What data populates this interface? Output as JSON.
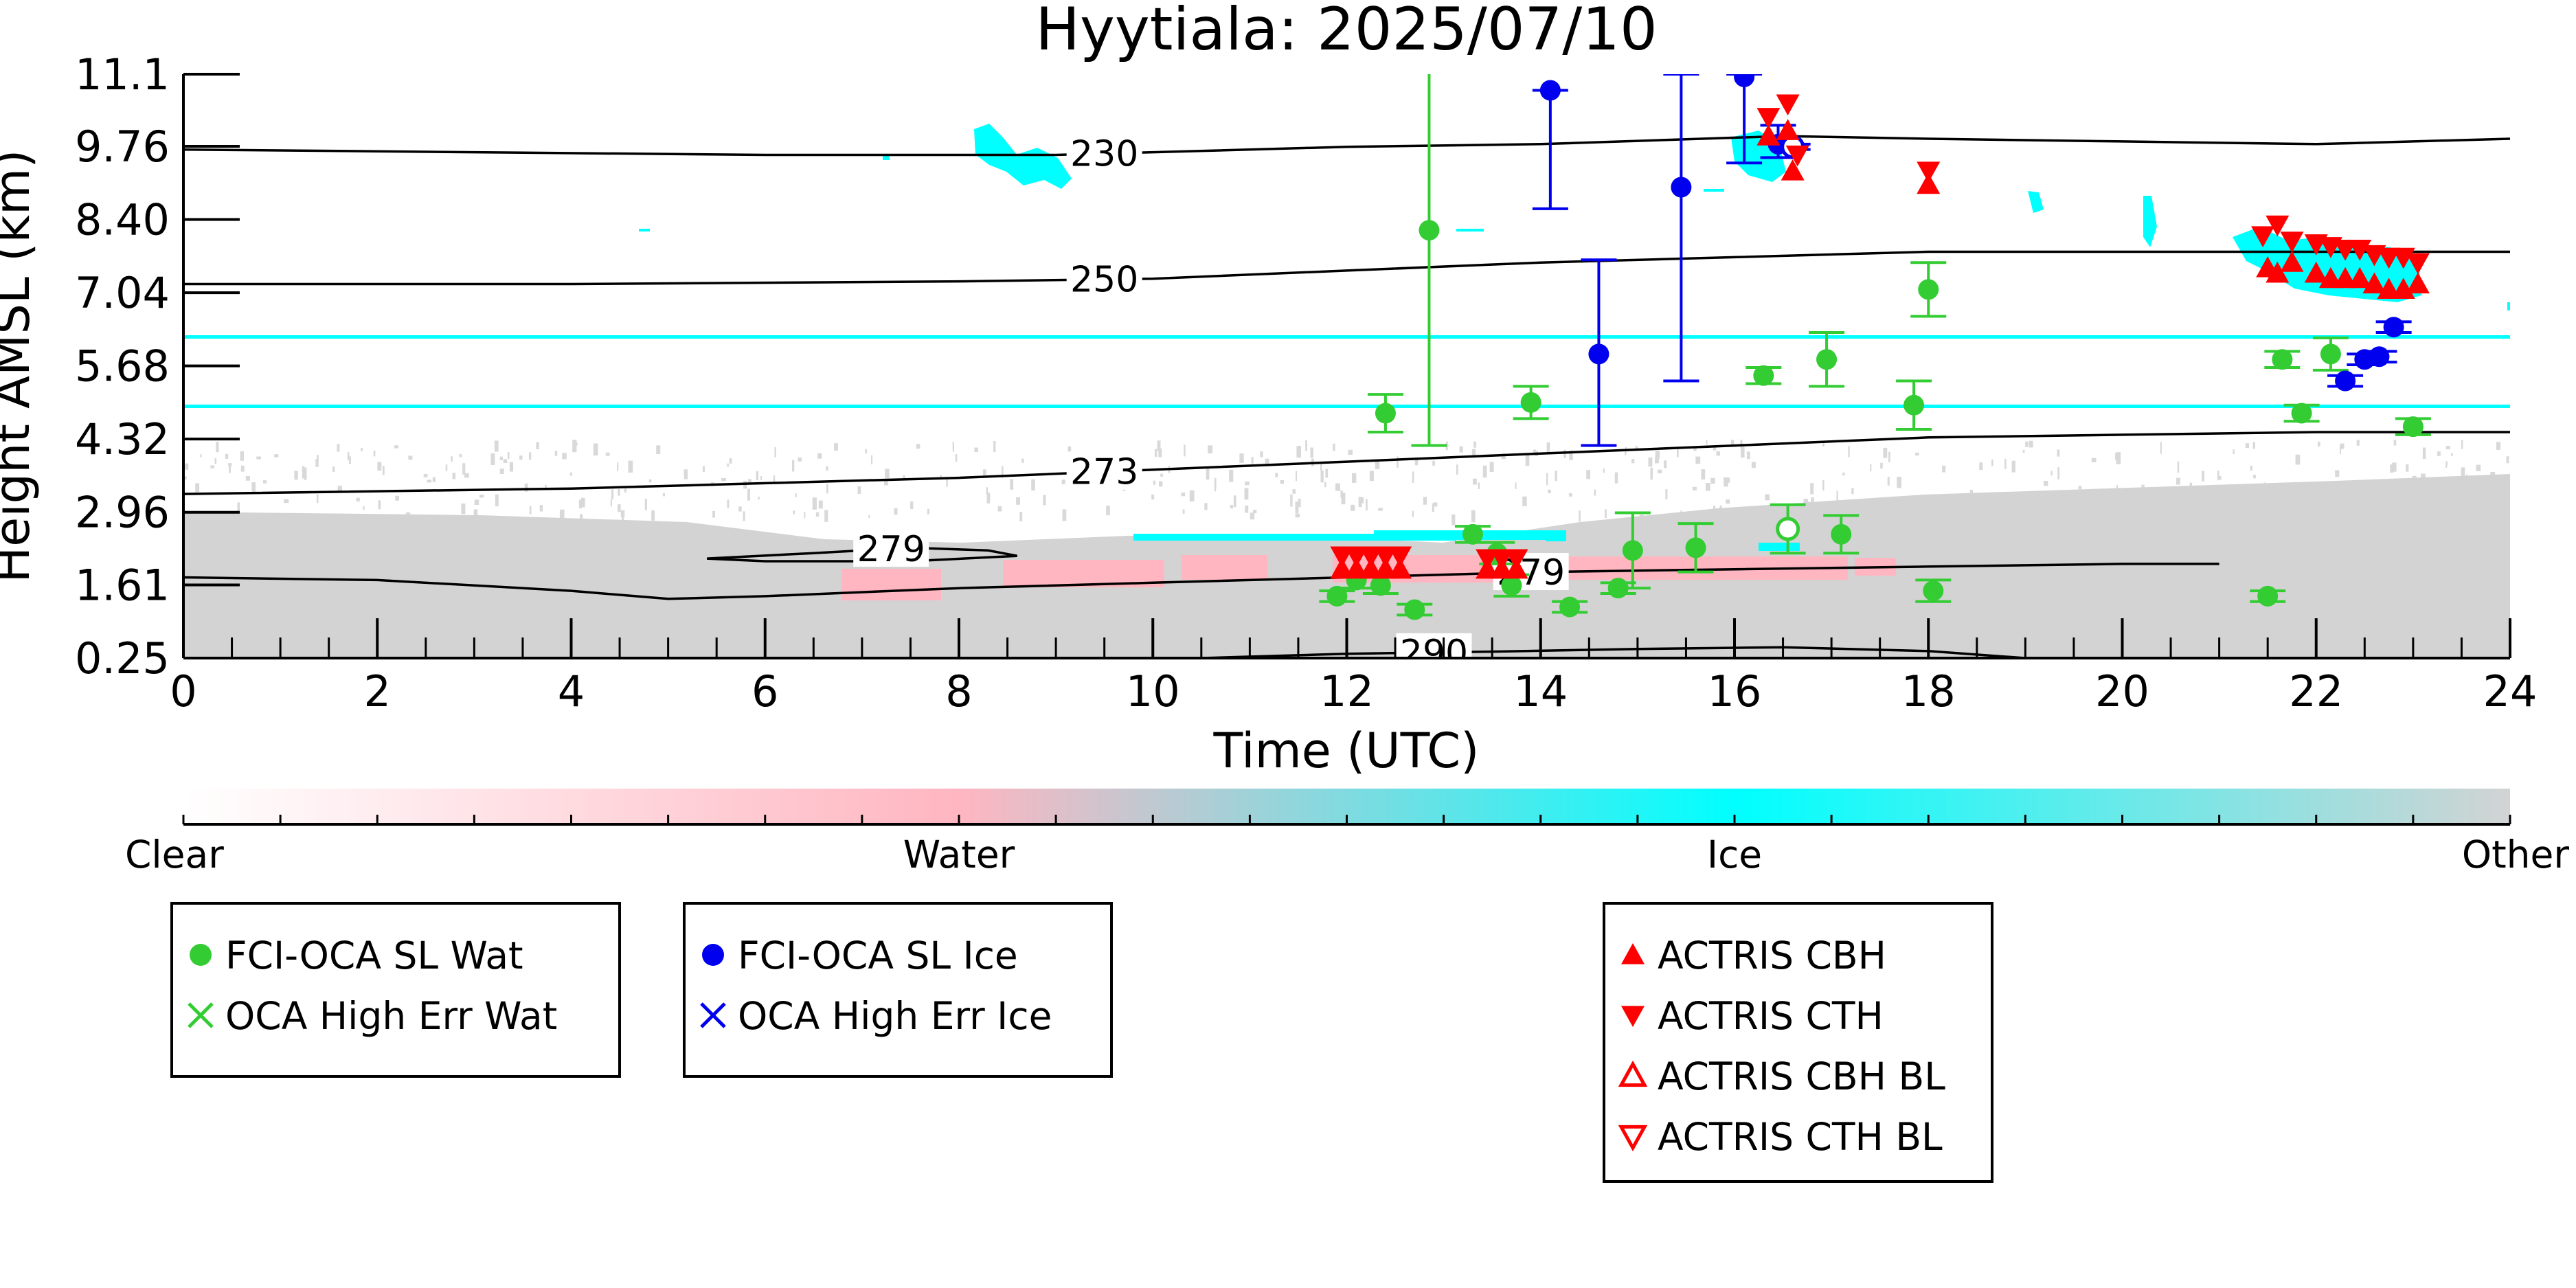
{
  "chart_data": {
    "type": "scatter",
    "title": "Hyytiala: 2025/07/10",
    "xlabel": "Time (UTC)",
    "ylabel": "Height AMSL (km)",
    "xlim": [
      0,
      24
    ],
    "ylim": [
      0.25,
      11.1
    ],
    "x_ticks": [
      "0",
      "2",
      "4",
      "6",
      "8",
      "10",
      "12",
      "14",
      "16",
      "18",
      "20",
      "22",
      "24"
    ],
    "y_ticks": [
      "0.25",
      "1.61",
      "2.96",
      "4.32",
      "5.68",
      "7.04",
      "8.40",
      "9.76",
      "11.1"
    ],
    "colorbar": {
      "labels": [
        "Clear",
        "Water",
        "Ice",
        "Other"
      ],
      "colors": [
        "#ffffff",
        "#ffb6c1",
        "#00ffff",
        "#d3d3d3"
      ]
    },
    "contours": [
      {
        "label": "230",
        "label_x": 9.5,
        "points": [
          [
            0,
            9.7
          ],
          [
            3,
            9.65
          ],
          [
            6,
            9.6
          ],
          [
            9,
            9.6
          ],
          [
            12,
            9.75
          ],
          [
            14,
            9.8
          ],
          [
            16.5,
            9.95
          ],
          [
            18,
            9.9
          ],
          [
            20,
            9.85
          ],
          [
            22,
            9.8
          ],
          [
            24,
            9.9
          ]
        ]
      },
      {
        "label": "250",
        "label_x": 9.5,
        "points": [
          [
            0,
            7.2
          ],
          [
            4,
            7.2
          ],
          [
            8,
            7.25
          ],
          [
            10,
            7.3
          ],
          [
            12,
            7.45
          ],
          [
            14,
            7.6
          ],
          [
            16,
            7.7
          ],
          [
            18,
            7.8
          ],
          [
            20,
            7.8
          ],
          [
            22,
            7.8
          ],
          [
            24,
            7.8
          ]
        ]
      },
      {
        "label": "273",
        "label_x": 9.5,
        "points": [
          [
            0,
            3.3
          ],
          [
            4,
            3.4
          ],
          [
            6,
            3.5
          ],
          [
            8,
            3.6
          ],
          [
            10,
            3.75
          ],
          [
            12,
            3.9
          ],
          [
            14,
            4.05
          ],
          [
            16,
            4.2
          ],
          [
            18,
            4.35
          ],
          [
            20,
            4.4
          ],
          [
            22,
            4.45
          ],
          [
            24,
            4.45
          ]
        ]
      },
      {
        "label": "279",
        "label_x": 13.9,
        "points": [
          [
            0,
            1.75
          ],
          [
            2,
            1.7
          ],
          [
            4,
            1.5
          ],
          [
            5,
            1.35
          ],
          [
            6,
            1.4
          ],
          [
            8,
            1.55
          ],
          [
            10,
            1.65
          ],
          [
            12,
            1.75
          ],
          [
            14,
            1.85
          ],
          [
            16,
            1.9
          ],
          [
            18,
            1.95
          ],
          [
            20,
            2.0
          ],
          [
            21,
            2.0
          ]
        ]
      },
      {
        "label": "279",
        "label_x": 7.3,
        "points": [
          [
            5.4,
            2.1
          ],
          [
            6.5,
            2.2
          ],
          [
            7.5,
            2.3
          ],
          [
            8.3,
            2.25
          ],
          [
            8.6,
            2.15
          ],
          [
            7.5,
            2.05
          ],
          [
            6,
            2.05
          ],
          [
            5.4,
            2.1
          ]
        ]
      },
      {
        "label": "290",
        "label_x": 12.9,
        "points": [
          [
            10.5,
            0.25
          ],
          [
            12,
            0.33
          ],
          [
            13.5,
            0.37
          ],
          [
            15,
            0.42
          ],
          [
            16.5,
            0.45
          ],
          [
            18,
            0.38
          ],
          [
            19,
            0.25
          ]
        ]
      }
    ],
    "series": [
      {
        "name": "FCI-OCA SL Wat",
        "color": "#33cc33",
        "marker": "circle",
        "points": [
          {
            "x": 12.4,
            "y": 4.8,
            "err": 0.35
          },
          {
            "x": 12.85,
            "y": 8.2,
            "err": 4.0
          },
          {
            "x": 13.9,
            "y": 5.0,
            "err": 0.3
          },
          {
            "x": 16.3,
            "y": 5.5,
            "err": 0.15
          },
          {
            "x": 16.95,
            "y": 5.8,
            "err": 0.5
          },
          {
            "x": 17.85,
            "y": 4.95,
            "err": 0.45
          },
          {
            "x": 18.0,
            "y": 7.1,
            "err": 0.5
          },
          {
            "x": 11.9,
            "y": 1.4,
            "err": 0.1
          },
          {
            "x": 12.1,
            "y": 1.7,
            "err": 0.15
          },
          {
            "x": 12.35,
            "y": 1.6,
            "err": 0.15
          },
          {
            "x": 12.7,
            "y": 1.15,
            "err": 0.1
          },
          {
            "x": 13.3,
            "y": 2.55,
            "err": 0.15
          },
          {
            "x": 13.55,
            "y": 2.2,
            "err": 0.2
          },
          {
            "x": 13.7,
            "y": 1.6,
            "err": 0.2
          },
          {
            "x": 14.3,
            "y": 1.2,
            "err": 0.1
          },
          {
            "x": 14.8,
            "y": 1.55,
            "err": 0.1
          },
          {
            "x": 14.95,
            "y": 2.25,
            "err": 0.7
          },
          {
            "x": 15.6,
            "y": 2.3,
            "err": 0.45
          },
          {
            "x": 16.55,
            "y": 2.65,
            "err": 0.45,
            "open": true
          },
          {
            "x": 17.1,
            "y": 2.55,
            "err": 0.35
          },
          {
            "x": 18.05,
            "y": 1.5,
            "err": 0.2
          },
          {
            "x": 21.5,
            "y": 1.4,
            "err": 0.1
          },
          {
            "x": 21.65,
            "y": 5.8,
            "err": 0.15
          },
          {
            "x": 22.15,
            "y": 5.9,
            "err": 0.3
          },
          {
            "x": 21.85,
            "y": 4.8,
            "err": 0.15
          },
          {
            "x": 23.0,
            "y": 4.55,
            "err": 0.15
          }
        ]
      },
      {
        "name": "OCA High Err Wat",
        "color": "#33cc33",
        "marker": "x",
        "points": []
      },
      {
        "name": "FCI-OCA SL Ice",
        "color": "#0000ee",
        "marker": "circle",
        "points": [
          {
            "x": 14.1,
            "y": 10.8,
            "err_low": 2.2,
            "err_high": 0
          },
          {
            "x": 14.6,
            "y": 5.9,
            "err_low": 1.7,
            "err_high": 1.75
          },
          {
            "x": 15.45,
            "y": 9.0,
            "err_low": 3.6,
            "err_high": 2.1
          },
          {
            "x": 16.1,
            "y": 11.05,
            "err_low": 1.6,
            "err_high": 0.05
          },
          {
            "x": 16.45,
            "y": 9.8,
            "err_low": 0.25,
            "err_high": 0.35
          },
          {
            "x": 16.6,
            "y": 9.75,
            "err_low": 0.05,
            "err_high": 0.05,
            "open": true
          },
          {
            "x": 22.3,
            "y": 5.4,
            "err_low": 0.1,
            "err_high": 0.1
          },
          {
            "x": 22.5,
            "y": 5.8,
            "err_low": 0.1,
            "err_high": 0.1
          },
          {
            "x": 22.65,
            "y": 5.85,
            "err_low": 0.1,
            "err_high": 0.1
          },
          {
            "x": 22.8,
            "y": 6.4,
            "err_low": 0.1,
            "err_high": 0.1
          }
        ]
      },
      {
        "name": "OCA High Err Ice",
        "color": "#0000ee",
        "marker": "x",
        "points": []
      },
      {
        "name": "ACTRIS CBH",
        "color": "#ff0000",
        "marker": "triangle-up",
        "points": [
          {
            "x": 11.95,
            "y": 1.9
          },
          {
            "x": 12.1,
            "y": 1.9
          },
          {
            "x": 12.25,
            "y": 1.9
          },
          {
            "x": 12.4,
            "y": 1.9
          },
          {
            "x": 12.55,
            "y": 1.9
          },
          {
            "x": 13.45,
            "y": 1.9
          },
          {
            "x": 13.6,
            "y": 1.9
          },
          {
            "x": 13.75,
            "y": 1.9
          },
          {
            "x": 16.35,
            "y": 9.95
          },
          {
            "x": 16.55,
            "y": 10.05
          },
          {
            "x": 16.6,
            "y": 9.3
          },
          {
            "x": 18.0,
            "y": 9.05
          },
          {
            "x": 21.5,
            "y": 7.5
          },
          {
            "x": 21.6,
            "y": 7.4
          },
          {
            "x": 21.75,
            "y": 7.6
          },
          {
            "x": 22.0,
            "y": 7.4
          },
          {
            "x": 22.15,
            "y": 7.3
          },
          {
            "x": 22.3,
            "y": 7.3
          },
          {
            "x": 22.45,
            "y": 7.3
          },
          {
            "x": 22.6,
            "y": 7.2
          },
          {
            "x": 22.75,
            "y": 7.1
          },
          {
            "x": 22.9,
            "y": 7.1
          },
          {
            "x": 23.05,
            "y": 7.2
          }
        ]
      },
      {
        "name": "ACTRIS CTH",
        "color": "#ff0000",
        "marker": "triangle-down",
        "points": [
          {
            "x": 11.95,
            "y": 2.15
          },
          {
            "x": 12.1,
            "y": 2.15
          },
          {
            "x": 12.25,
            "y": 2.15
          },
          {
            "x": 12.4,
            "y": 2.15
          },
          {
            "x": 12.55,
            "y": 2.15
          },
          {
            "x": 13.45,
            "y": 2.1
          },
          {
            "x": 13.6,
            "y": 2.1
          },
          {
            "x": 13.75,
            "y": 2.1
          },
          {
            "x": 16.35,
            "y": 10.3
          },
          {
            "x": 16.55,
            "y": 10.55
          },
          {
            "x": 16.65,
            "y": 9.6
          },
          {
            "x": 18.0,
            "y": 9.3
          },
          {
            "x": 21.45,
            "y": 8.1
          },
          {
            "x": 21.6,
            "y": 8.3
          },
          {
            "x": 21.75,
            "y": 8.0
          },
          {
            "x": 22.0,
            "y": 7.95
          },
          {
            "x": 22.15,
            "y": 7.9
          },
          {
            "x": 22.3,
            "y": 7.85
          },
          {
            "x": 22.45,
            "y": 7.85
          },
          {
            "x": 22.6,
            "y": 7.75
          },
          {
            "x": 22.75,
            "y": 7.7
          },
          {
            "x": 22.9,
            "y": 7.7
          },
          {
            "x": 23.05,
            "y": 7.6
          }
        ]
      },
      {
        "name": "ACTRIS CBH BL",
        "color": "#ff0000",
        "marker": "triangle-up-open",
        "points": []
      },
      {
        "name": "ACTRIS CTH BL",
        "color": "#ff0000",
        "marker": "triangle-down-open",
        "points": []
      }
    ],
    "legend_groups": [
      [
        "FCI-OCA SL Wat",
        "OCA High Err Wat"
      ],
      [
        "FCI-OCA SL Ice",
        "OCA High Err Ice"
      ],
      [
        "ACTRIS CBH",
        "ACTRIS CTH",
        "ACTRIS CBH BL",
        "ACTRIS CTH BL"
      ]
    ]
  }
}
